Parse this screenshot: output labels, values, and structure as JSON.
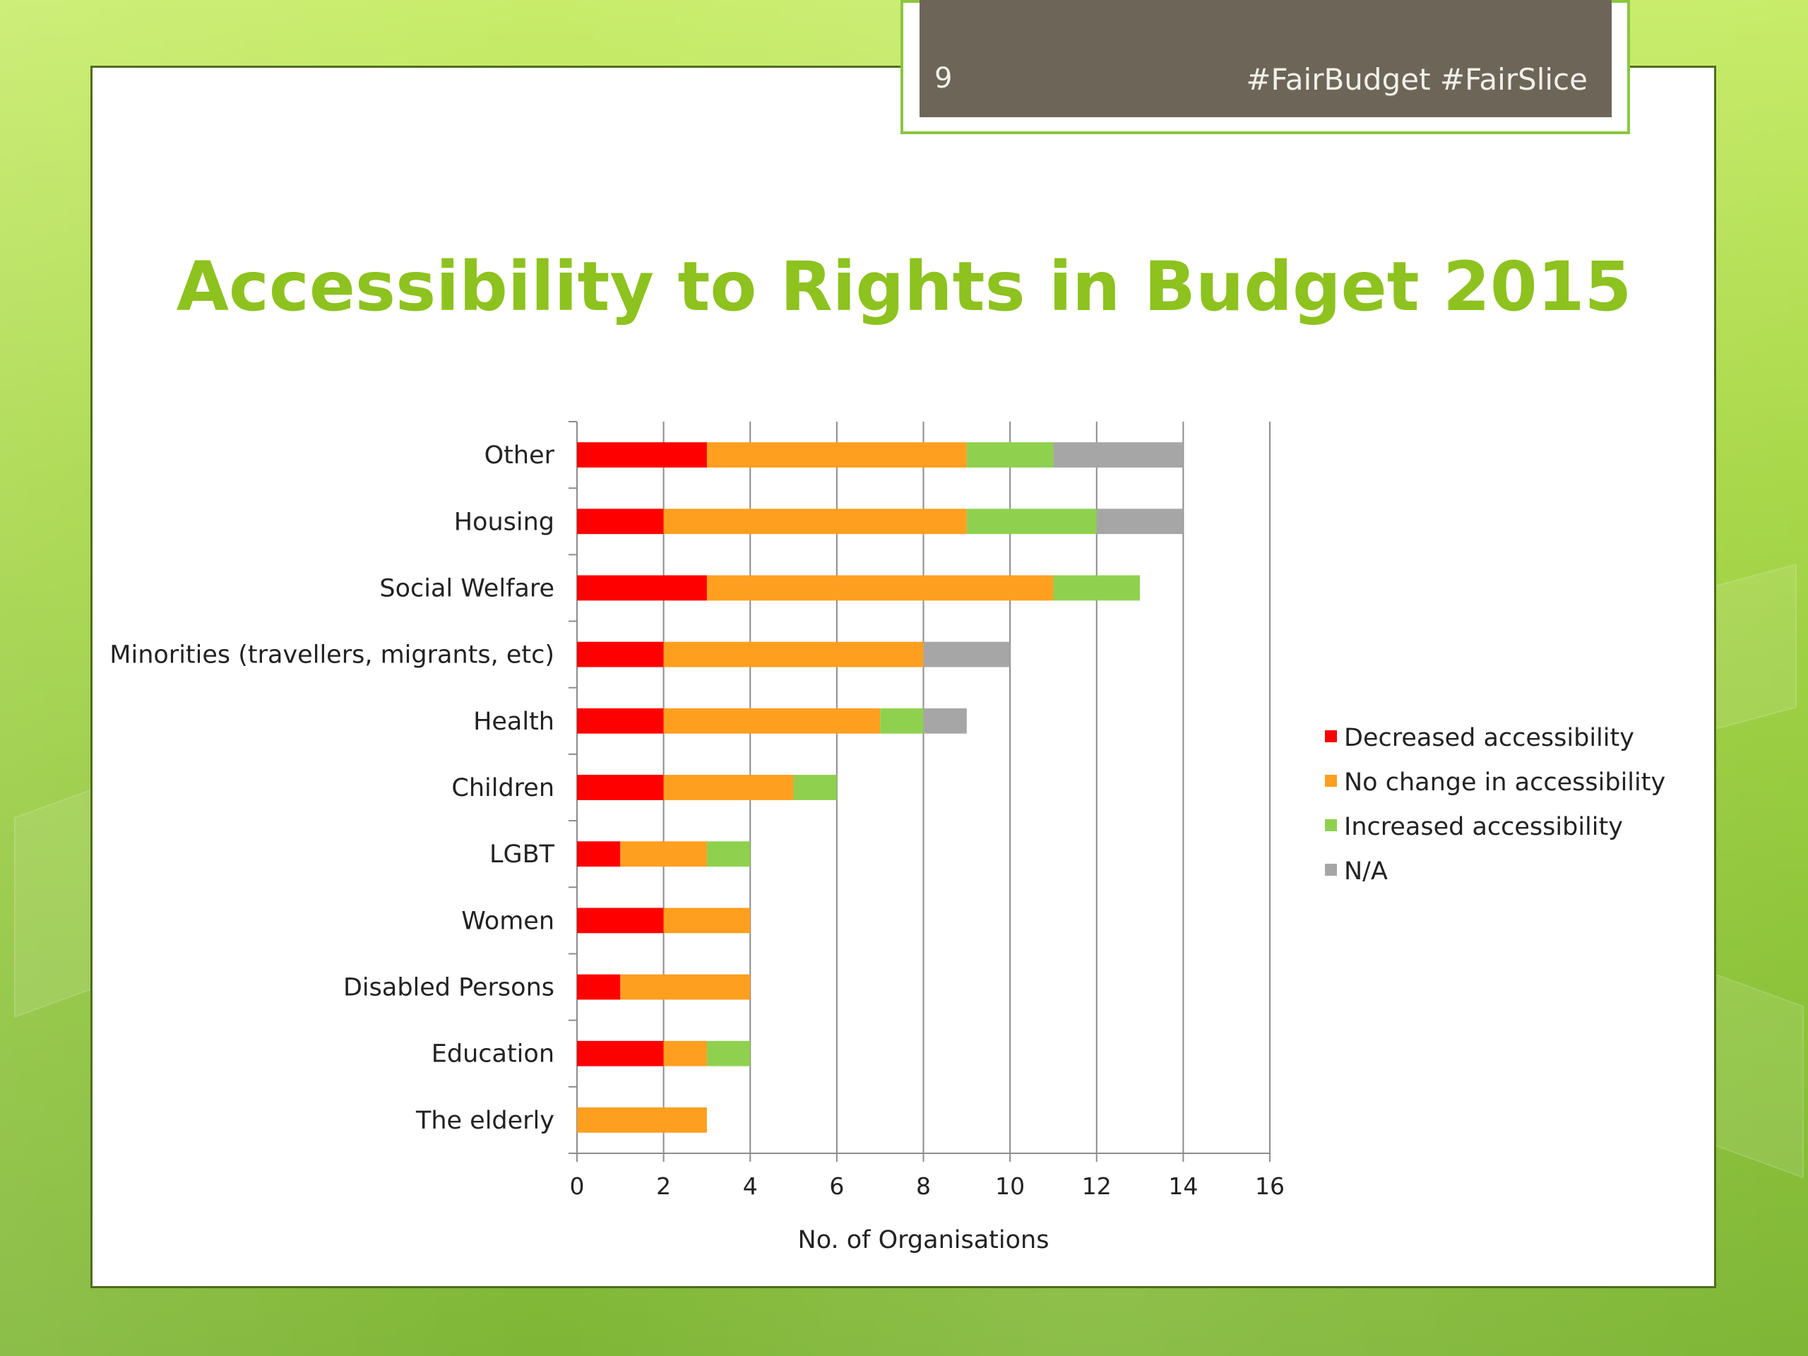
{
  "slide": {
    "page_number": "9",
    "hashtags": "#FairBudget #FairSlice",
    "title": "Accessibility to Rights in Budget 2015"
  },
  "colors": {
    "accent_green": "#8dc21f",
    "header_box": "#6d6658"
  },
  "chart_data": {
    "type": "bar",
    "orientation": "horizontal",
    "stacked": true,
    "categories": [
      "Other",
      "Housing",
      "Social Welfare",
      "Minorities (travellers, migrants, etc)",
      "Health",
      "Children",
      "LGBT",
      "Women",
      "Disabled Persons",
      "Education",
      "The elderly"
    ],
    "series": [
      {
        "name": "Decreased accessibility",
        "color": "#ff0000",
        "values": [
          3,
          2,
          3,
          2,
          2,
          2,
          1,
          2,
          1,
          2,
          0
        ]
      },
      {
        "name": "No change in accessibility",
        "color": "#ff9f1f",
        "values": [
          6,
          7,
          8,
          6,
          5,
          3,
          2,
          2,
          3,
          1,
          3
        ]
      },
      {
        "name": "Increased accessibility",
        "color": "#8fd14f",
        "values": [
          2,
          3,
          2,
          0,
          1,
          1,
          1,
          0,
          0,
          1,
          0
        ]
      },
      {
        "name": "N/A",
        "color": "#a6a6a6",
        "values": [
          3,
          2,
          0,
          2,
          1,
          0,
          0,
          0,
          0,
          0,
          0
        ]
      }
    ],
    "xlabel": "No. of Organisations",
    "xlim": [
      0,
      16
    ],
    "xticks": [
      "0",
      "2",
      "4",
      "6",
      "8",
      "10",
      "12",
      "14",
      "16"
    ],
    "grid": true,
    "legend_position": "right"
  }
}
